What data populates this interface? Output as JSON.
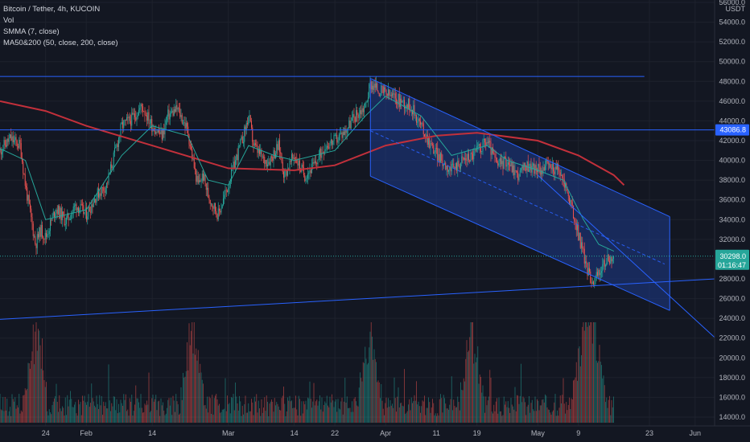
{
  "legend": {
    "symbol_line": "Bitcoin / Tether, 4h, KUCOIN",
    "vol_label": "Vol",
    "smma_label": "SMMA (7, close)",
    "ma_label": "MA50&200 (50, close, 200, close)"
  },
  "colors": {
    "background": "#131722",
    "grid": "#1e222d",
    "up_candle": "#26a69a",
    "down_candle": "#ef5350",
    "smma": "#26a69a",
    "ma200": "#c2303b",
    "drawing": "#2962ff",
    "channel_fill": "#1e3a8a",
    "price_badge": "#26a69a",
    "level_badge": "#2962ff"
  },
  "chart_data": {
    "type": "candlestick",
    "title": "Bitcoin / Tether, 4h, KUCOIN",
    "y_axis_unit": "USDT",
    "y_ticks": [
      56000,
      54000,
      52000,
      50000,
      48000,
      46000,
      44000,
      42000,
      40000,
      38000,
      36000,
      34000,
      32000,
      30000,
      28000,
      26000,
      24000,
      22000,
      20000,
      18000,
      16000,
      14000
    ],
    "y_tick_labels": [
      "56000.0",
      "54000.0",
      "52000.0",
      "50000.0",
      "48000.0",
      "46000.0",
      "44000.0",
      "42000.0",
      "40000.0",
      "38000.0",
      "36000.0",
      "34000.0",
      "32000.0",
      "30000.0",
      "28000.0",
      "26000.0",
      "24000.0",
      "22000.0",
      "20000.0",
      "18000.0",
      "16000.0",
      "14000.0"
    ],
    "x_tick_labels": [
      "24",
      "Feb",
      "14",
      "Mar",
      "14",
      "22",
      "Apr",
      "11",
      "19",
      "May",
      "9",
      "23",
      "Jun"
    ],
    "x_tick_dates": [
      "2021-01-24",
      "2021-02-01",
      "2021-02-14",
      "2021-03-01",
      "2021-03-14",
      "2021-03-22",
      "2021-04-01",
      "2021-04-11",
      "2021-04-19",
      "2021-05-01",
      "2021-05-09",
      "2021-05-23",
      "2021-06-01"
    ],
    "x_range": [
      "2021-01-15",
      "2021-06-05"
    ],
    "last_price": "30298.0",
    "countdown": "01:16:47",
    "horizontal_level": "43086.8",
    "price_path": [
      [
        "2021-01-15",
        41000
      ],
      [
        "2021-01-17",
        42200
      ],
      [
        "2021-01-19",
        41500
      ],
      [
        "2021-01-20",
        37500
      ],
      [
        "2021-01-21",
        34500
      ],
      [
        "2021-01-22",
        31500
      ],
      [
        "2021-01-23",
        33000
      ],
      [
        "2021-01-24",
        32200
      ],
      [
        "2021-01-26",
        35200
      ],
      [
        "2021-01-28",
        33800
      ],
      [
        "2021-01-30",
        35500
      ],
      [
        "2021-02-01",
        34500
      ],
      [
        "2021-02-03",
        36500
      ],
      [
        "2021-02-05",
        37500
      ],
      [
        "2021-02-06",
        39500
      ],
      [
        "2021-02-08",
        43500
      ],
      [
        "2021-02-10",
        44200
      ],
      [
        "2021-02-12",
        45500
      ],
      [
        "2021-02-14",
        43500
      ],
      [
        "2021-02-16",
        42500
      ],
      [
        "2021-02-17",
        44500
      ],
      [
        "2021-02-19",
        45200
      ],
      [
        "2021-02-21",
        43000
      ],
      [
        "2021-02-22",
        40000
      ],
      [
        "2021-02-23",
        37500
      ],
      [
        "2021-02-24",
        38500
      ],
      [
        "2021-02-25",
        36500
      ],
      [
        "2021-02-27",
        34500
      ],
      [
        "2021-03-01",
        37500
      ],
      [
        "2021-03-03",
        41000
      ],
      [
        "2021-03-04",
        42500
      ],
      [
        "2021-03-05",
        44500
      ],
      [
        "2021-03-06",
        41500
      ],
      [
        "2021-03-08",
        40000
      ],
      [
        "2021-03-09",
        40000
      ],
      [
        "2021-03-11",
        41500
      ],
      [
        "2021-03-12",
        38500
      ],
      [
        "2021-03-14",
        40500
      ],
      [
        "2021-03-16",
        38500
      ],
      [
        "2021-03-18",
        39500
      ],
      [
        "2021-03-20",
        41500
      ],
      [
        "2021-03-22",
        42000
      ],
      [
        "2021-03-24",
        43000
      ],
      [
        "2021-03-26",
        44500
      ],
      [
        "2021-03-28",
        45500
      ],
      [
        "2021-03-29",
        47800
      ],
      [
        "2021-03-31",
        47000
      ],
      [
        "2021-04-02",
        46500
      ],
      [
        "2021-04-04",
        46000
      ],
      [
        "2021-04-06",
        45500
      ],
      [
        "2021-04-08",
        43500
      ],
      [
        "2021-04-10",
        41500
      ],
      [
        "2021-04-12",
        40000
      ],
      [
        "2021-04-14",
        39000
      ],
      [
        "2021-04-16",
        40000
      ],
      [
        "2021-04-18",
        40500
      ],
      [
        "2021-04-20",
        41500
      ],
      [
        "2021-04-21",
        42000
      ],
      [
        "2021-04-23",
        39500
      ],
      [
        "2021-04-25",
        40000
      ],
      [
        "2021-04-27",
        38500
      ],
      [
        "2021-04-29",
        39500
      ],
      [
        "2021-05-01",
        39000
      ],
      [
        "2021-05-03",
        39500
      ],
      [
        "2021-05-05",
        39000
      ],
      [
        "2021-05-06",
        38000
      ],
      [
        "2021-05-07",
        36500
      ],
      [
        "2021-05-08",
        34500
      ],
      [
        "2021-05-09",
        32500
      ],
      [
        "2021-05-10",
        30500
      ],
      [
        "2021-05-11",
        28500
      ],
      [
        "2021-05-12",
        27800
      ],
      [
        "2021-05-13",
        28500
      ],
      [
        "2021-05-14",
        29500
      ],
      [
        "2021-05-15",
        30000
      ],
      [
        "2021-05-16",
        30298
      ]
    ],
    "ma200_path": [
      [
        "2021-01-15",
        46000
      ],
      [
        "2021-01-24",
        45000
      ],
      [
        "2021-02-01",
        43500
      ],
      [
        "2021-02-14",
        41500
      ],
      [
        "2021-03-01",
        39200
      ],
      [
        "2021-03-14",
        39000
      ],
      [
        "2021-03-22",
        39500
      ],
      [
        "2021-04-01",
        41500
      ],
      [
        "2021-04-11",
        42500
      ],
      [
        "2021-04-19",
        42800
      ],
      [
        "2021-05-01",
        42000
      ],
      [
        "2021-05-09",
        40500
      ],
      [
        "2021-05-16",
        38500
      ],
      [
        "2021-05-18",
        37500
      ]
    ],
    "smma_path": [
      [
        "2021-01-15",
        41200
      ],
      [
        "2021-01-20",
        40000
      ],
      [
        "2021-01-24",
        34000
      ],
      [
        "2021-02-01",
        35000
      ],
      [
        "2021-02-08",
        40500
      ],
      [
        "2021-02-14",
        43500
      ],
      [
        "2021-02-21",
        42500
      ],
      [
        "2021-02-25",
        38000
      ],
      [
        "2021-03-01",
        37500
      ],
      [
        "2021-03-05",
        41500
      ],
      [
        "2021-03-10",
        40500
      ],
      [
        "2021-03-14",
        40000
      ],
      [
        "2021-03-22",
        41000
      ],
      [
        "2021-03-28",
        44500
      ],
      [
        "2021-04-01",
        46500
      ],
      [
        "2021-04-08",
        44500
      ],
      [
        "2021-04-14",
        40500
      ],
      [
        "2021-04-21",
        41500
      ],
      [
        "2021-04-25",
        40000
      ],
      [
        "2021-05-01",
        39000
      ],
      [
        "2021-05-06",
        38000
      ],
      [
        "2021-05-10",
        34000
      ],
      [
        "2021-05-13",
        31500
      ],
      [
        "2021-05-16",
        30800
      ]
    ],
    "volume_max_label": "tallest bars near 2021-03-29, 2021-05-10 and 2021-05-12",
    "drawings": {
      "upper_horizontal": {
        "y": 48500,
        "from": "2021-01-15",
        "to": "2021-05-22"
      },
      "level_line": {
        "y": 43086.8
      },
      "channel_upper": [
        [
          "2021-03-29",
          48300
        ],
        [
          "2021-05-27",
          34300
        ]
      ],
      "channel_mid": [
        [
          "2021-03-29",
          43000
        ],
        [
          "2021-05-26",
          29500
        ]
      ],
      "channel_lower": [
        [
          "2021-03-29",
          38400
        ],
        [
          "2021-05-27",
          24800
        ]
      ],
      "rising_support": [
        [
          "2021-01-15",
          23900
        ],
        [
          "2021-06-05",
          28000
        ]
      ],
      "breakdown_line": [
        [
          "2021-05-01",
          38500
        ],
        [
          "2021-06-05",
          22000
        ]
      ]
    }
  }
}
